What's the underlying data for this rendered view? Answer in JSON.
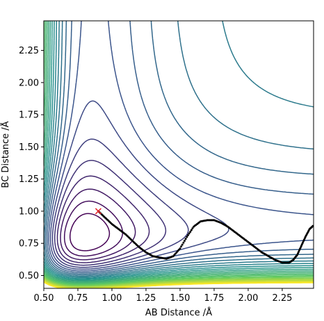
{
  "chart_data": {
    "type": "contour",
    "title": "",
    "xlabel": "AB Distance /Å",
    "ylabel": "BC Distance /Å",
    "xlim": [
      0.5,
      2.48
    ],
    "ylim": [
      0.4,
      2.48
    ],
    "xticks": [
      "0.50",
      "0.75",
      "1.00",
      "1.25",
      "1.50",
      "1.75",
      "2.00",
      "2.25"
    ],
    "yticks": [
      "0.50",
      "0.75",
      "1.00",
      "1.25",
      "1.50",
      "1.75",
      "2.00",
      "2.25"
    ],
    "grid": false,
    "legend": false,
    "colormap": "viridis",
    "colormap_stops": [
      "#440154",
      "#3b528b",
      "#21918c",
      "#5ec962",
      "#fde725"
    ],
    "contour_levels": 28,
    "start_marker": {
      "x": 0.9,
      "y": 1.0,
      "symbol": "x",
      "color": "#e8262b"
    },
    "trajectory": {
      "color": "#000000",
      "x": [
        0.9,
        0.95,
        1.0,
        1.05,
        1.1,
        1.15,
        1.2,
        1.25,
        1.3,
        1.35,
        1.4,
        1.45,
        1.5,
        1.55,
        1.6,
        1.65,
        1.7,
        1.75,
        1.8,
        1.85,
        1.9,
        1.95,
        2.0,
        2.05,
        2.1,
        2.15,
        2.2,
        2.25,
        2.3,
        2.33,
        2.36,
        2.39,
        2.42,
        2.45,
        2.48
      ],
      "y": [
        1.0,
        0.95,
        0.9,
        0.86,
        0.82,
        0.77,
        0.72,
        0.68,
        0.65,
        0.64,
        0.63,
        0.65,
        0.71,
        0.8,
        0.88,
        0.92,
        0.93,
        0.93,
        0.91,
        0.88,
        0.84,
        0.8,
        0.76,
        0.72,
        0.68,
        0.65,
        0.62,
        0.6,
        0.6,
        0.62,
        0.66,
        0.73,
        0.8,
        0.86,
        0.89
      ]
    }
  }
}
